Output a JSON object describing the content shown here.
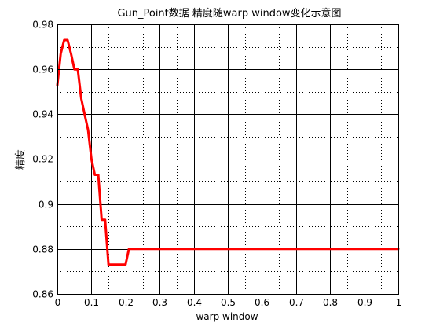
{
  "chart_data": {
    "type": "line",
    "title": "Gun_Point数据 精度随warp window变化示意图",
    "xlabel": "warp window",
    "ylabel": "精度",
    "xlim": [
      0,
      1
    ],
    "ylim": [
      0.86,
      0.98
    ],
    "xticks": [
      0,
      0.1,
      0.2,
      0.3,
      0.4,
      0.5,
      0.6,
      0.7,
      0.8,
      0.9,
      1
    ],
    "xtick_labels": [
      "0",
      "0.1",
      "0.2",
      "0.3",
      "0.4",
      "0.5",
      "0.6",
      "0.7",
      "0.8",
      "0.9",
      "1"
    ],
    "yticks": [
      0.86,
      0.88,
      0.9,
      0.92,
      0.94,
      0.96,
      0.98
    ],
    "ytick_labels": [
      "0.86",
      "0.88",
      "0.9",
      "0.92",
      "0.94",
      "0.96",
      "0.98"
    ],
    "grid": "major solid, minor dotted",
    "color": "#ff0000",
    "x": [
      0,
      0.01,
      0.02,
      0.03,
      0.04,
      0.05,
      0.06,
      0.07,
      0.08,
      0.09,
      0.1,
      0.11,
      0.12,
      0.13,
      0.14,
      0.15,
      0.16,
      0.17,
      0.18,
      0.19,
      0.2,
      0.21,
      0.22,
      0.3,
      0.4,
      0.5,
      0.6,
      0.7,
      0.8,
      0.9,
      1.0
    ],
    "y": [
      0.953,
      0.967,
      0.973,
      0.973,
      0.967,
      0.96,
      0.96,
      0.947,
      0.94,
      0.933,
      0.92,
      0.913,
      0.913,
      0.893,
      0.893,
      0.873,
      0.873,
      0.873,
      0.873,
      0.873,
      0.873,
      0.88,
      0.88,
      0.88,
      0.88,
      0.88,
      0.88,
      0.88,
      0.88,
      0.88,
      0.88
    ]
  }
}
